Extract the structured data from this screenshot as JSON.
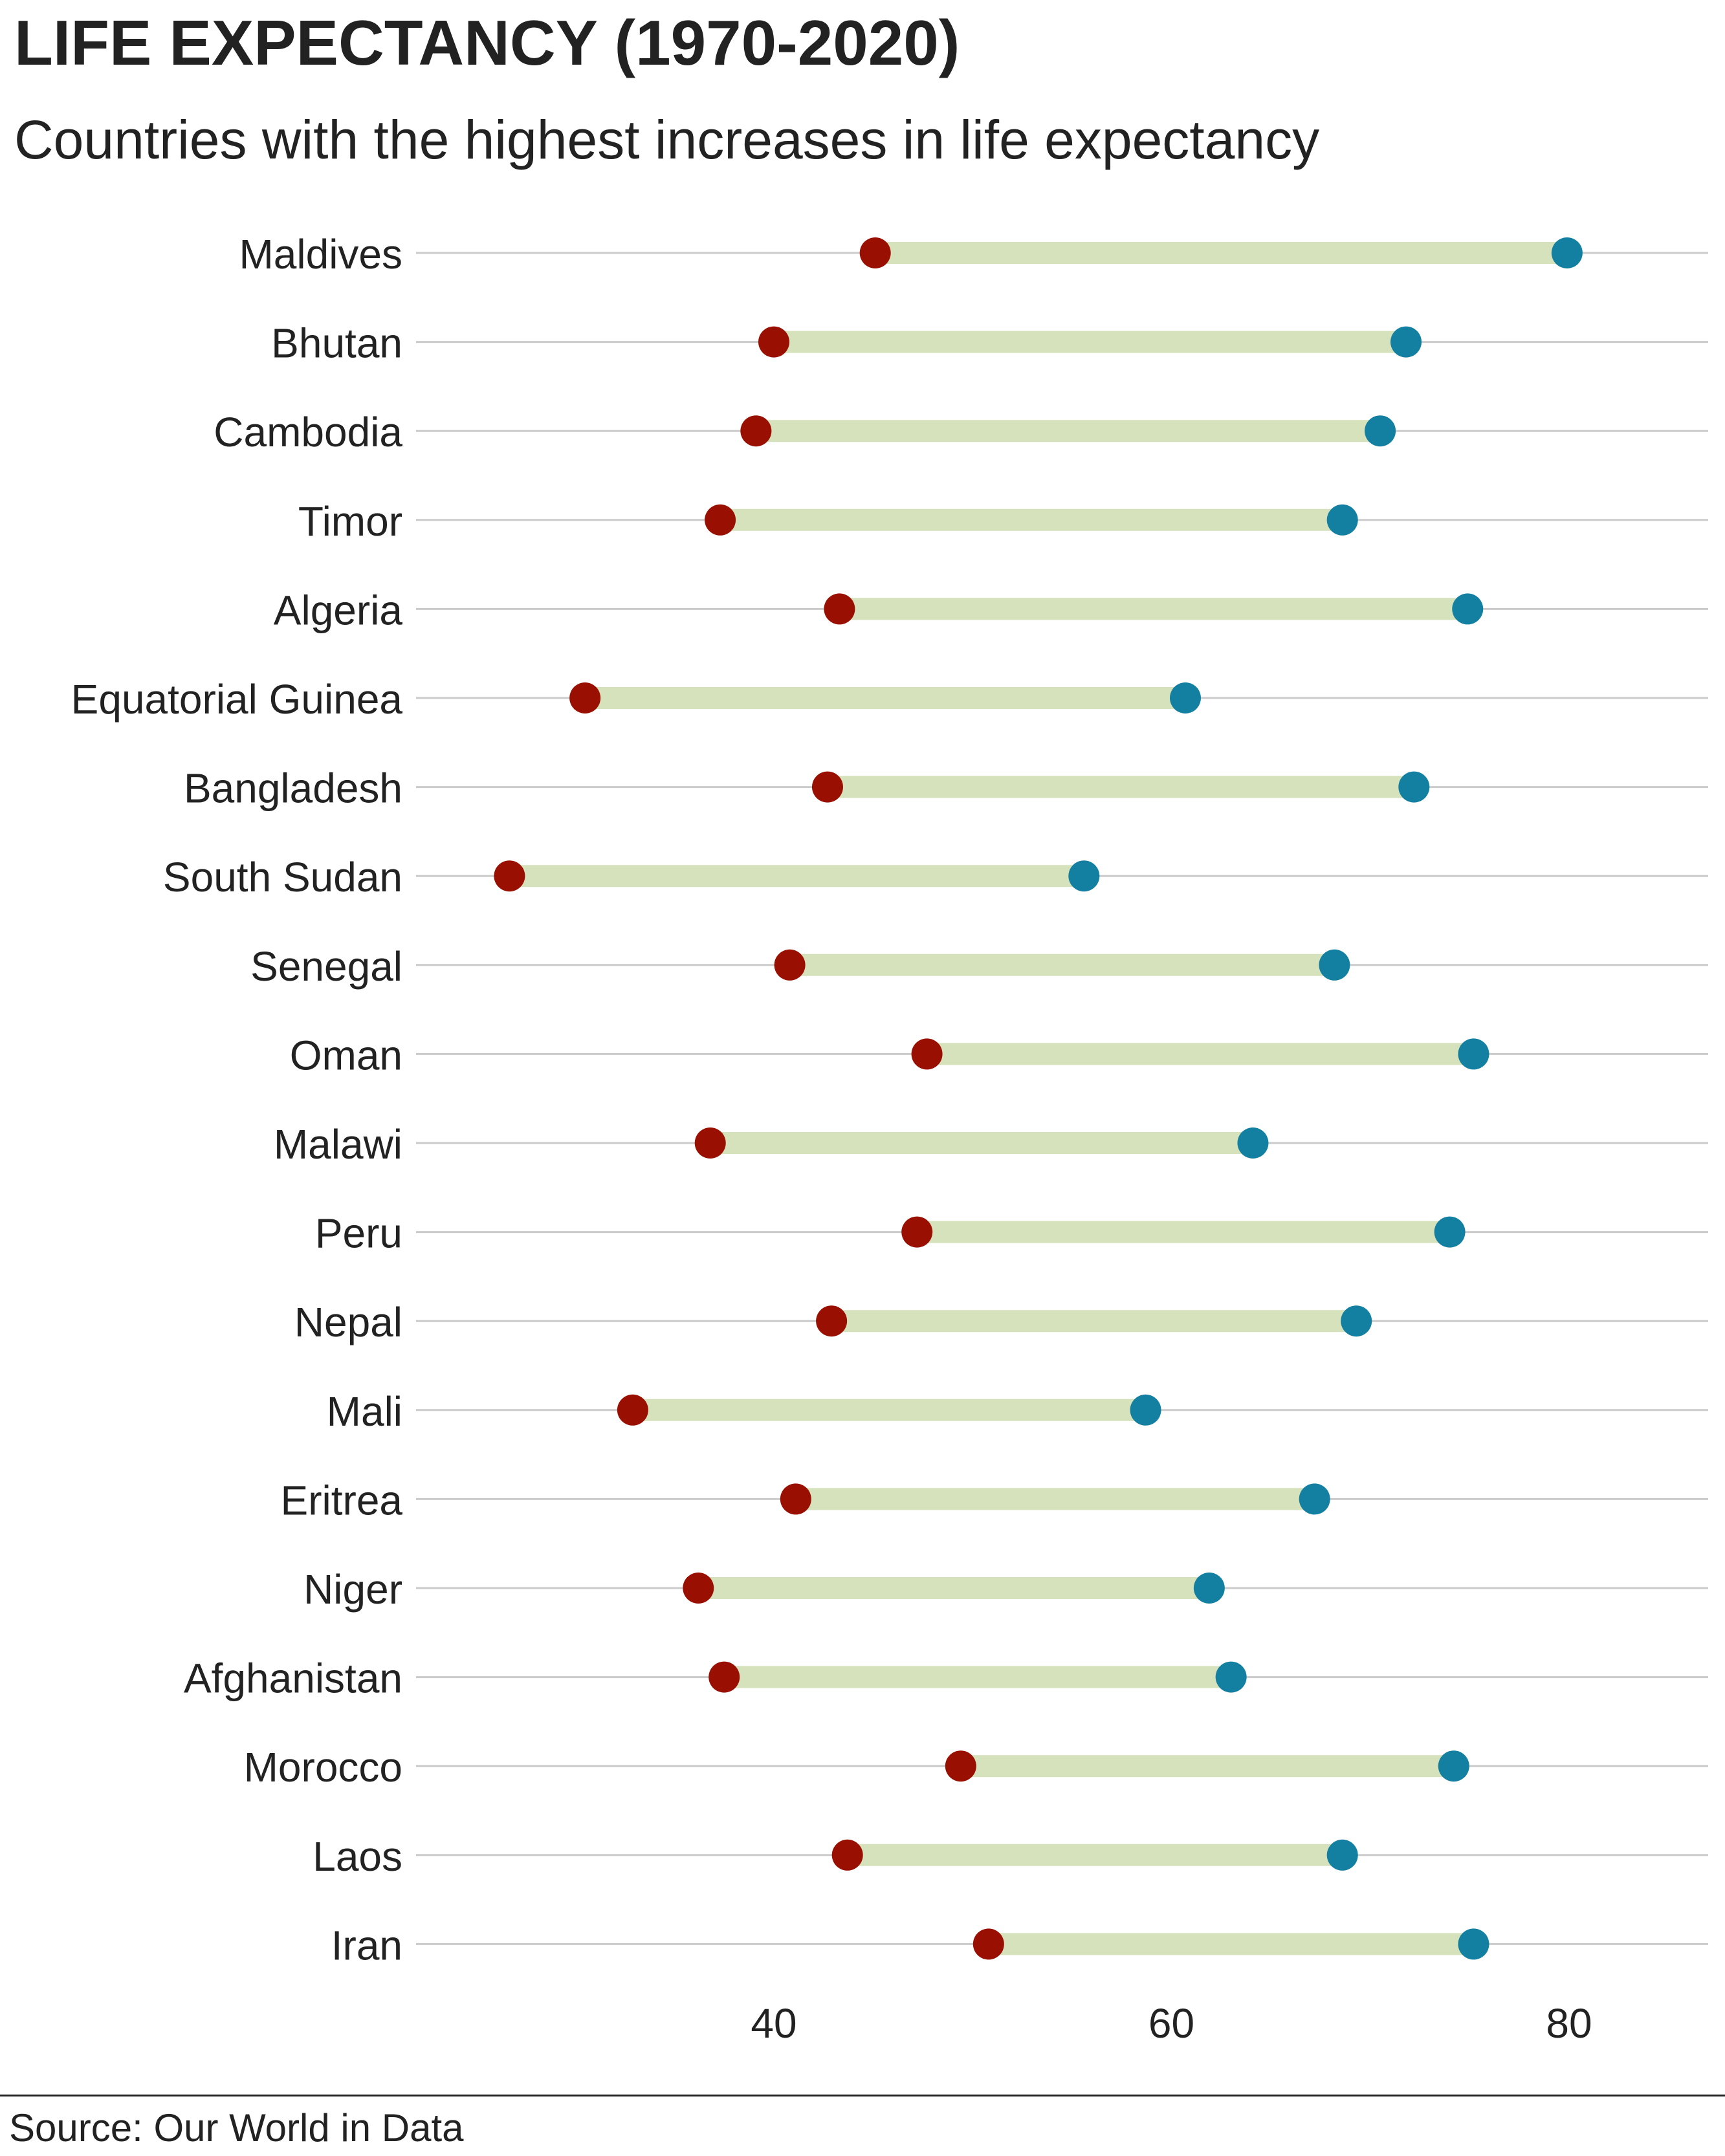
{
  "header": {
    "title": "LIFE EXPECTANCY (1970-2020)",
    "subtitle": "Countries with the highest increases in life expectancy"
  },
  "footer": {
    "source": "Source: Our World in Data"
  },
  "colors": {
    "start_dot": "#990F02",
    "end_dot": "#1380A1",
    "bar": "#D6E2BC",
    "gridline": "#CBCBCB",
    "text": "#222222"
  },
  "chart_data": {
    "type": "dumbbell",
    "title": "LIFE EXPECTANCY (1970-2020)",
    "subtitle": "Countries with the highest increases in life expectancy",
    "xlabel": "",
    "ylabel": "",
    "xlim": [
      22,
      87
    ],
    "xticks": [
      40,
      60,
      80
    ],
    "grid": "horizontal",
    "legend": "none",
    "categories": [
      "Maldives",
      "Bhutan",
      "Cambodia",
      "Timor",
      "Algeria",
      "Equatorial Guinea",
      "Bangladesh",
      "South Sudan",
      "Senegal",
      "Oman",
      "Malawi",
      "Peru",
      "Nepal",
      "Mali",
      "Eritrea",
      "Niger",
      "Afghanistan",
      "Morocco",
      "Laos",
      "Iran"
    ],
    "series": [
      {
        "values": [
          45.1,
          40.0,
          39.1,
          37.3,
          43.3,
          30.5,
          42.7,
          26.7,
          40.8,
          47.7,
          36.8,
          47.2,
          42.9,
          32.9,
          41.1,
          36.2,
          37.5,
          49.4,
          43.7,
          50.8
        ]
      },
      {
        "values": [
          79.9,
          71.8,
          70.5,
          68.6,
          74.9,
          60.7,
          72.2,
          55.6,
          68.2,
          75.2,
          64.1,
          74.0,
          69.3,
          58.7,
          67.2,
          61.9,
          63.0,
          74.2,
          68.6,
          75.2
        ]
      }
    ]
  }
}
